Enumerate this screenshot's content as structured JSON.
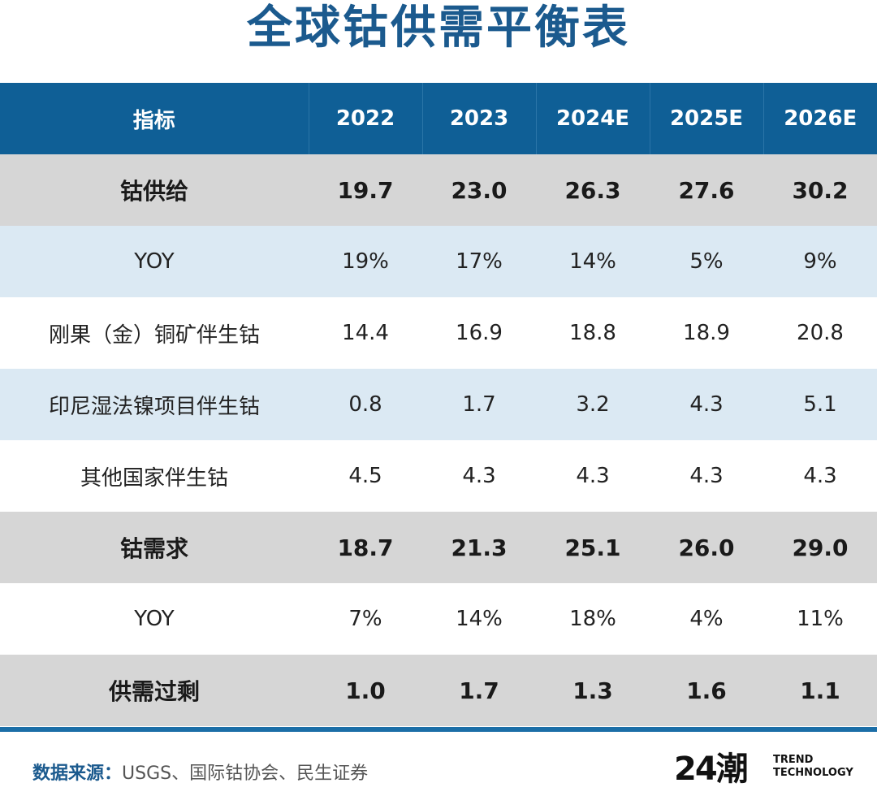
{
  "title": "全球钴供需平衡表",
  "header": [
    "指标",
    "2022",
    "2023",
    "2024E",
    "2025E",
    "2026E"
  ],
  "rows": [
    {
      "style": "gray",
      "cells": [
        "钴供给",
        "19.7",
        "23.0",
        "26.3",
        "27.6",
        "30.2"
      ]
    },
    {
      "style": "light",
      "cells": [
        "YOY",
        "19%",
        "17%",
        "14%",
        "5%",
        "9%"
      ]
    },
    {
      "style": "white",
      "cells": [
        "刚果（金）铜矿伴生钴",
        "14.4",
        "16.9",
        "18.8",
        "18.9",
        "20.8"
      ]
    },
    {
      "style": "light",
      "cells": [
        "印尼湿法镍项目伴生钴",
        "0.8",
        "1.7",
        "3.2",
        "4.3",
        "5.1"
      ]
    },
    {
      "style": "white",
      "cells": [
        "其他国家伴生钴",
        "4.5",
        "4.3",
        "4.3",
        "4.3",
        "4.3"
      ]
    },
    {
      "style": "gray",
      "cells": [
        "钴需求",
        "18.7",
        "21.3",
        "25.1",
        "26.0",
        "29.0"
      ]
    },
    {
      "style": "white",
      "cells": [
        "YOY",
        "7%",
        "14%",
        "18%",
        "4%",
        "11%"
      ]
    },
    {
      "style": "gray",
      "cells": [
        "供需过剩",
        "1.0",
        "1.7",
        "1.3",
        "1.6",
        "1.1"
      ]
    }
  ],
  "source": {
    "label": "数据来源：",
    "text": "USGS、国际钴协会、民生证券"
  },
  "logo": {
    "mark": "24潮",
    "line1": "TREND",
    "line2": "TECHNOLOGY"
  }
}
